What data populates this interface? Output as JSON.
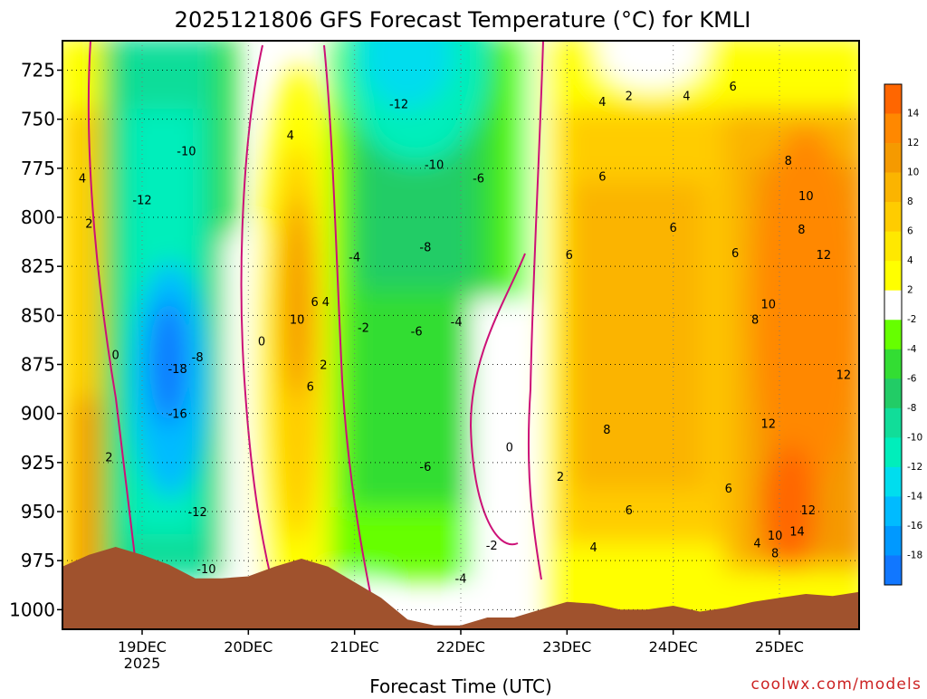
{
  "chart_data": {
    "type": "heatmap",
    "title": "2025121806 GFS Forecast Temperature (°C) for KMLI",
    "xlabel": "Forecast Time (UTC)",
    "ylabel": "",
    "credit": "coolwx.com/models",
    "x_ticks": [
      {
        "label": "19DEC",
        "sublabel": "2025",
        "t": 0
      },
      {
        "label": "20DEC",
        "sublabel": "",
        "t": 24
      },
      {
        "label": "21DEC",
        "sublabel": "",
        "t": 48
      },
      {
        "label": "22DEC",
        "sublabel": "",
        "t": 72
      },
      {
        "label": "23DEC",
        "sublabel": "",
        "t": 96
      },
      {
        "label": "24DEC",
        "sublabel": "",
        "t": 120
      },
      {
        "label": "25DEC",
        "sublabel": "",
        "t": 144
      }
    ],
    "xlim_hours": [
      -18,
      162
    ],
    "y_ticks": [
      725,
      750,
      775,
      800,
      825,
      850,
      875,
      900,
      925,
      950,
      975,
      1000
    ],
    "ylim": [
      710,
      1010
    ],
    "y_inverted": true,
    "legend": {
      "placement": "right",
      "bins": [
        {
          "label": "14",
          "color": "#ff6600"
        },
        {
          "label": "12",
          "color": "#ff8800"
        },
        {
          "label": "10",
          "color": "#f59a00"
        },
        {
          "label": "8",
          "color": "#fbb400"
        },
        {
          "label": "6",
          "color": "#ffcc00"
        },
        {
          "label": "4",
          "color": "#ffe800"
        },
        {
          "label": "2",
          "color": "#ffff00"
        },
        {
          "label": "-2",
          "color": "#ffffff"
        },
        {
          "label": "-4",
          "color": "#66ff00"
        },
        {
          "label": "-6",
          "color": "#33dd33"
        },
        {
          "label": "-8",
          "color": "#22cc66"
        },
        {
          "label": "-10",
          "color": "#11dd99"
        },
        {
          "label": "-12",
          "color": "#00eebb"
        },
        {
          "label": "-14",
          "color": "#00ddee"
        },
        {
          "label": "-16",
          "color": "#00bbff"
        },
        {
          "label": "-18",
          "color": "#0099ff"
        },
        {
          "label": "",
          "color": "#1177ff"
        }
      ]
    },
    "terrain_color": "#a0522d",
    "terrain_pressure": [
      [
        -18,
        978
      ],
      [
        -12,
        972
      ],
      [
        -6,
        968
      ],
      [
        0,
        972
      ],
      [
        6,
        977
      ],
      [
        12,
        984
      ],
      [
        18,
        984
      ],
      [
        24,
        983
      ],
      [
        30,
        978
      ],
      [
        36,
        974
      ],
      [
        42,
        978
      ],
      [
        48,
        986
      ],
      [
        54,
        994
      ],
      [
        60,
        1005
      ],
      [
        66,
        1008
      ],
      [
        72,
        1008
      ],
      [
        78,
        1004
      ],
      [
        84,
        1004
      ],
      [
        90,
        1000
      ],
      [
        96,
        996
      ],
      [
        102,
        997
      ],
      [
        108,
        1000
      ],
      [
        114,
        1000
      ],
      [
        120,
        998
      ],
      [
        126,
        1001
      ],
      [
        132,
        999
      ],
      [
        138,
        996
      ],
      [
        144,
        994
      ],
      [
        150,
        992
      ],
      [
        156,
        993
      ],
      [
        162,
        991
      ]
    ],
    "grid": true,
    "gridlines": "dotted",
    "contour_labels": [
      {
        "v": "4",
        "t": -13.5,
        "p": 780
      },
      {
        "v": "2",
        "t": -12,
        "p": 803
      },
      {
        "v": "0",
        "t": -6,
        "p": 870
      },
      {
        "v": "2",
        "t": -7.5,
        "p": 922
      },
      {
        "v": "-12",
        "t": 0,
        "p": 791
      },
      {
        "v": "-10",
        "t": 10,
        "p": 766
      },
      {
        "v": "-8",
        "t": 12.5,
        "p": 871
      },
      {
        "v": "-18",
        "t": 8,
        "p": 877
      },
      {
        "v": "-16",
        "t": 8,
        "p": 900
      },
      {
        "v": "-12",
        "t": 12.5,
        "p": 950
      },
      {
        "v": "-10",
        "t": 14.5,
        "p": 979
      },
      {
        "v": "0",
        "t": 27,
        "p": 863
      },
      {
        "v": "4",
        "t": 33.5,
        "p": 758
      },
      {
        "v": "6",
        "t": 39,
        "p": 843
      },
      {
        "v": "4",
        "t": 41.5,
        "p": 843
      },
      {
        "v": "10",
        "t": 35,
        "p": 852
      },
      {
        "v": "2",
        "t": 41,
        "p": 875
      },
      {
        "v": "6",
        "t": 38,
        "p": 886
      },
      {
        "v": "-4",
        "t": 48,
        "p": 820
      },
      {
        "v": "-2",
        "t": 50,
        "p": 856
      },
      {
        "v": "-12",
        "t": 58,
        "p": 742
      },
      {
        "v": "-10",
        "t": 66,
        "p": 773
      },
      {
        "v": "-6",
        "t": 76,
        "p": 780
      },
      {
        "v": "-8",
        "t": 64,
        "p": 815
      },
      {
        "v": "-6",
        "t": 62,
        "p": 858
      },
      {
        "v": "-4",
        "t": 71,
        "p": 853
      },
      {
        "v": "-6",
        "t": 64,
        "p": 927
      },
      {
        "v": "0",
        "t": 83,
        "p": 917
      },
      {
        "v": "-4",
        "t": 72,
        "p": 984
      },
      {
        "v": "-2",
        "t": 79,
        "p": 967
      },
      {
        "v": "2",
        "t": 94.5,
        "p": 932
      },
      {
        "v": "6",
        "t": 96.5,
        "p": 819
      },
      {
        "v": "4",
        "t": 104,
        "p": 741
      },
      {
        "v": "2",
        "t": 110,
        "p": 738
      },
      {
        "v": "4",
        "t": 123,
        "p": 738
      },
      {
        "v": "6",
        "t": 104,
        "p": 779
      },
      {
        "v": "6",
        "t": 120,
        "p": 805
      },
      {
        "v": "6",
        "t": 133.5,
        "p": 733
      },
      {
        "v": "6",
        "t": 134,
        "p": 818
      },
      {
        "v": "8",
        "t": 138.5,
        "p": 852
      },
      {
        "v": "8",
        "t": 105,
        "p": 908
      },
      {
        "v": "6",
        "t": 110,
        "p": 949
      },
      {
        "v": "4",
        "t": 102,
        "p": 968
      },
      {
        "v": "6",
        "t": 132.5,
        "p": 938
      },
      {
        "v": "8",
        "t": 146,
        "p": 771
      },
      {
        "v": "10",
        "t": 150,
        "p": 789
      },
      {
        "v": "8",
        "t": 149,
        "p": 806
      },
      {
        "v": "12",
        "t": 154,
        "p": 819
      },
      {
        "v": "10",
        "t": 141.5,
        "p": 844
      },
      {
        "v": "12",
        "t": 158.5,
        "p": 880
      },
      {
        "v": "12",
        "t": 141.5,
        "p": 905
      },
      {
        "v": "12",
        "t": 150.5,
        "p": 949
      },
      {
        "v": "14",
        "t": 148,
        "p": 960
      },
      {
        "v": "10",
        "t": 143,
        "p": 962
      },
      {
        "v": "4",
        "t": 139,
        "p": 966
      },
      {
        "v": "8",
        "t": 143,
        "p": 971
      }
    ]
  }
}
